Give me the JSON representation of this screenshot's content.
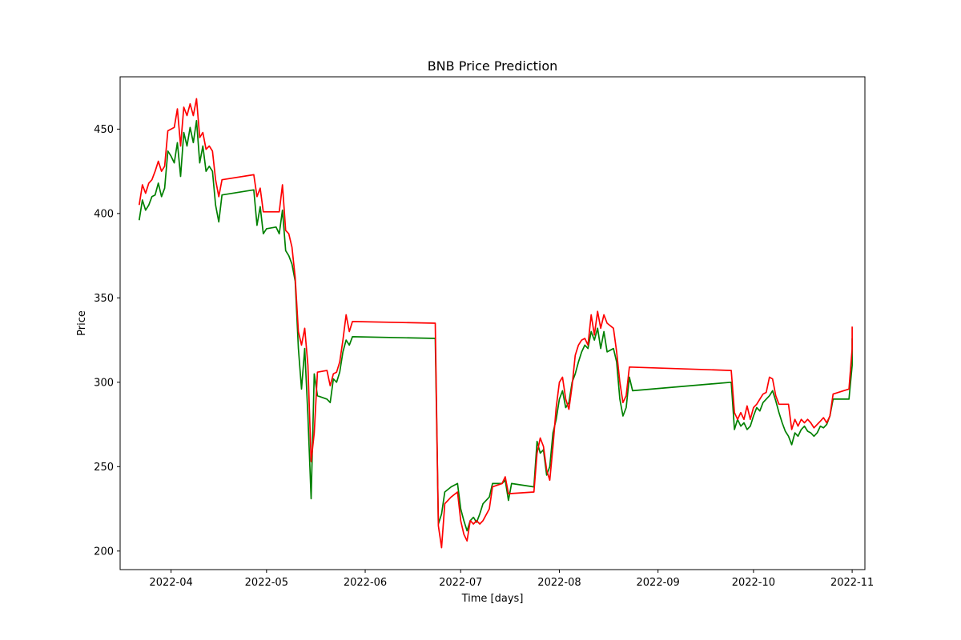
{
  "chart_data": {
    "type": "line",
    "title": "BNB Price Prediction",
    "xlabel": "Time [days]",
    "ylabel": "Price",
    "x_ticks": [
      "2022-04",
      "2022-05",
      "2022-06",
      "2022-07",
      "2022-08",
      "2022-09",
      "2022-10",
      "2022-11"
    ],
    "y_ticks": [
      200,
      250,
      300,
      350,
      400,
      450
    ],
    "xlim": [
      "2022-03-16",
      "2022-11-05"
    ],
    "ylim": [
      189,
      481
    ],
    "grid": false,
    "series": [
      {
        "color": "#008000",
        "points": [
          [
            "2022-03-22",
            396
          ],
          [
            "2022-03-23",
            408
          ],
          [
            "2022-03-24",
            402
          ],
          [
            "2022-03-25",
            405
          ],
          [
            "2022-03-26",
            410
          ],
          [
            "2022-03-27",
            411
          ],
          [
            "2022-03-28",
            418
          ],
          [
            "2022-03-29",
            410
          ],
          [
            "2022-03-30",
            415
          ],
          [
            "2022-03-31",
            437
          ],
          [
            "2022-04-01",
            434
          ],
          [
            "2022-04-02",
            430
          ],
          [
            "2022-04-03",
            442
          ],
          [
            "2022-04-04",
            422
          ],
          [
            "2022-04-05",
            448
          ],
          [
            "2022-04-06",
            440
          ],
          [
            "2022-04-07",
            451
          ],
          [
            "2022-04-08",
            442
          ],
          [
            "2022-04-09",
            455
          ],
          [
            "2022-04-10",
            430
          ],
          [
            "2022-04-11",
            440
          ],
          [
            "2022-04-12",
            425
          ],
          [
            "2022-04-13",
            428
          ],
          [
            "2022-04-14",
            425
          ],
          [
            "2022-04-15",
            405
          ],
          [
            "2022-04-16",
            395
          ],
          [
            "2022-04-17",
            411
          ],
          [
            "2022-04-27",
            414
          ],
          [
            "2022-04-28",
            393
          ],
          [
            "2022-04-29",
            404
          ],
          [
            "2022-04-30",
            388
          ],
          [
            "2022-05-01",
            391
          ],
          [
            "2022-05-04",
            392
          ],
          [
            "2022-05-05",
            388
          ],
          [
            "2022-05-06",
            402
          ],
          [
            "2022-05-07",
            378
          ],
          [
            "2022-05-08",
            375
          ],
          [
            "2022-05-09",
            370
          ],
          [
            "2022-05-10",
            360
          ],
          [
            "2022-05-11",
            320
          ],
          [
            "2022-05-12",
            296
          ],
          [
            "2022-05-13",
            320
          ],
          [
            "2022-05-14",
            280
          ],
          [
            "2022-05-15",
            231
          ],
          [
            "2022-05-16",
            305
          ],
          [
            "2022-05-17",
            292
          ],
          [
            "2022-05-20",
            290
          ],
          [
            "2022-05-21",
            288
          ],
          [
            "2022-05-22",
            302
          ],
          [
            "2022-05-23",
            300
          ],
          [
            "2022-05-24",
            306
          ],
          [
            "2022-05-25",
            318
          ],
          [
            "2022-05-26",
            325
          ],
          [
            "2022-05-27",
            322
          ],
          [
            "2022-05-28",
            327
          ],
          [
            "2022-06-23",
            326
          ],
          [
            "2022-06-24",
            216
          ],
          [
            "2022-06-25",
            222
          ],
          [
            "2022-06-26",
            235
          ],
          [
            "2022-06-28",
            238
          ],
          [
            "2022-06-30",
            240
          ],
          [
            "2022-07-01",
            225
          ],
          [
            "2022-07-02",
            218
          ],
          [
            "2022-07-03",
            212
          ],
          [
            "2022-07-04",
            218
          ],
          [
            "2022-07-05",
            220
          ],
          [
            "2022-07-06",
            217
          ],
          [
            "2022-07-07",
            222
          ],
          [
            "2022-07-08",
            228
          ],
          [
            "2022-07-10",
            232
          ],
          [
            "2022-07-11",
            240
          ],
          [
            "2022-07-14",
            240
          ],
          [
            "2022-07-15",
            242
          ],
          [
            "2022-07-16",
            230
          ],
          [
            "2022-07-17",
            240
          ],
          [
            "2022-07-24",
            238
          ],
          [
            "2022-07-25",
            265
          ],
          [
            "2022-07-26",
            258
          ],
          [
            "2022-07-27",
            260
          ],
          [
            "2022-07-28",
            245
          ],
          [
            "2022-07-29",
            250
          ],
          [
            "2022-07-30",
            270
          ],
          [
            "2022-07-31",
            278
          ],
          [
            "2022-08-01",
            290
          ],
          [
            "2022-08-02",
            295
          ],
          [
            "2022-08-03",
            285
          ],
          [
            "2022-08-04",
            288
          ],
          [
            "2022-08-05",
            300
          ],
          [
            "2022-08-06",
            305
          ],
          [
            "2022-08-07",
            312
          ],
          [
            "2022-08-08",
            318
          ],
          [
            "2022-08-09",
            322
          ],
          [
            "2022-08-10",
            320
          ],
          [
            "2022-08-11",
            330
          ],
          [
            "2022-08-12",
            325
          ],
          [
            "2022-08-13",
            332
          ],
          [
            "2022-08-14",
            320
          ],
          [
            "2022-08-15",
            330
          ],
          [
            "2022-08-16",
            318
          ],
          [
            "2022-08-18",
            320
          ],
          [
            "2022-08-19",
            312
          ],
          [
            "2022-08-20",
            290
          ],
          [
            "2022-08-21",
            280
          ],
          [
            "2022-08-22",
            285
          ],
          [
            "2022-08-23",
            303
          ],
          [
            "2022-08-24",
            295
          ],
          [
            "2022-09-24",
            300
          ],
          [
            "2022-09-25",
            272
          ],
          [
            "2022-09-26",
            278
          ],
          [
            "2022-09-27",
            274
          ],
          [
            "2022-09-28",
            276
          ],
          [
            "2022-09-29",
            272
          ],
          [
            "2022-09-30",
            274
          ],
          [
            "2022-10-01",
            280
          ],
          [
            "2022-10-02",
            285
          ],
          [
            "2022-10-03",
            283
          ],
          [
            "2022-10-04",
            288
          ],
          [
            "2022-10-05",
            290
          ],
          [
            "2022-10-06",
            292
          ],
          [
            "2022-10-07",
            295
          ],
          [
            "2022-10-08",
            289
          ],
          [
            "2022-10-09",
            282
          ],
          [
            "2022-10-10",
            276
          ],
          [
            "2022-10-11",
            271
          ],
          [
            "2022-10-12",
            268
          ],
          [
            "2022-10-13",
            263
          ],
          [
            "2022-10-14",
            270
          ],
          [
            "2022-10-15",
            268
          ],
          [
            "2022-10-16",
            272
          ],
          [
            "2022-10-17",
            274
          ],
          [
            "2022-10-18",
            271
          ],
          [
            "2022-10-19",
            270
          ],
          [
            "2022-10-20",
            268
          ],
          [
            "2022-10-21",
            270
          ],
          [
            "2022-10-22",
            274
          ],
          [
            "2022-10-23",
            273
          ],
          [
            "2022-10-24",
            275
          ],
          [
            "2022-10-25",
            280
          ],
          [
            "2022-10-26",
            290
          ],
          [
            "2022-10-31",
            290
          ],
          [
            "2022-11-01",
            310
          ],
          [
            "2022-11-01",
            326
          ]
        ]
      },
      {
        "color": "#ff0000",
        "points": [
          [
            "2022-03-22",
            405
          ],
          [
            "2022-03-23",
            417
          ],
          [
            "2022-03-24",
            412
          ],
          [
            "2022-03-25",
            418
          ],
          [
            "2022-03-26",
            420
          ],
          [
            "2022-03-27",
            425
          ],
          [
            "2022-03-28",
            431
          ],
          [
            "2022-03-29",
            425
          ],
          [
            "2022-03-30",
            428
          ],
          [
            "2022-03-31",
            449
          ],
          [
            "2022-04-01",
            450
          ],
          [
            "2022-04-02",
            451
          ],
          [
            "2022-04-03",
            462
          ],
          [
            "2022-04-04",
            440
          ],
          [
            "2022-04-05",
            463
          ],
          [
            "2022-04-06",
            458
          ],
          [
            "2022-04-07",
            465
          ],
          [
            "2022-04-08",
            458
          ],
          [
            "2022-04-09",
            468
          ],
          [
            "2022-04-10",
            445
          ],
          [
            "2022-04-11",
            448
          ],
          [
            "2022-04-12",
            438
          ],
          [
            "2022-04-13",
            440
          ],
          [
            "2022-04-14",
            437
          ],
          [
            "2022-04-15",
            420
          ],
          [
            "2022-04-16",
            410
          ],
          [
            "2022-04-17",
            420
          ],
          [
            "2022-04-27",
            423
          ],
          [
            "2022-04-28",
            410
          ],
          [
            "2022-04-29",
            415
          ],
          [
            "2022-04-30",
            401
          ],
          [
            "2022-05-05",
            401
          ],
          [
            "2022-05-06",
            417
          ],
          [
            "2022-05-07",
            390
          ],
          [
            "2022-05-08",
            388
          ],
          [
            "2022-05-09",
            380
          ],
          [
            "2022-05-10",
            362
          ],
          [
            "2022-05-11",
            330
          ],
          [
            "2022-05-12",
            322
          ],
          [
            "2022-05-13",
            332
          ],
          [
            "2022-05-14",
            310
          ],
          [
            "2022-05-15",
            253
          ],
          [
            "2022-05-16",
            270
          ],
          [
            "2022-05-17",
            306
          ],
          [
            "2022-05-20",
            307
          ],
          [
            "2022-05-21",
            298
          ],
          [
            "2022-05-22",
            305
          ],
          [
            "2022-05-23",
            306
          ],
          [
            "2022-05-24",
            312
          ],
          [
            "2022-05-25",
            325
          ],
          [
            "2022-05-26",
            340
          ],
          [
            "2022-05-27",
            330
          ],
          [
            "2022-05-28",
            336
          ],
          [
            "2022-06-23",
            335
          ],
          [
            "2022-06-24",
            215
          ],
          [
            "2022-06-25",
            202
          ],
          [
            "2022-06-26",
            228
          ],
          [
            "2022-06-28",
            232
          ],
          [
            "2022-06-30",
            235
          ],
          [
            "2022-07-01",
            218
          ],
          [
            "2022-07-02",
            210
          ],
          [
            "2022-07-03",
            206
          ],
          [
            "2022-07-04",
            218
          ],
          [
            "2022-07-05",
            216
          ],
          [
            "2022-07-06",
            218
          ],
          [
            "2022-07-07",
            216
          ],
          [
            "2022-07-08",
            218
          ],
          [
            "2022-07-10",
            225
          ],
          [
            "2022-07-11",
            238
          ],
          [
            "2022-07-14",
            240
          ],
          [
            "2022-07-15",
            244
          ],
          [
            "2022-07-16",
            234
          ],
          [
            "2022-07-24",
            235
          ],
          [
            "2022-07-25",
            258
          ],
          [
            "2022-07-26",
            267
          ],
          [
            "2022-07-27",
            262
          ],
          [
            "2022-07-28",
            248
          ],
          [
            "2022-07-29",
            242
          ],
          [
            "2022-07-30",
            262
          ],
          [
            "2022-07-31",
            285
          ],
          [
            "2022-08-01",
            300
          ],
          [
            "2022-08-02",
            303
          ],
          [
            "2022-08-03",
            290
          ],
          [
            "2022-08-04",
            284
          ],
          [
            "2022-08-05",
            298
          ],
          [
            "2022-08-06",
            316
          ],
          [
            "2022-08-07",
            322
          ],
          [
            "2022-08-08",
            325
          ],
          [
            "2022-08-09",
            326
          ],
          [
            "2022-08-10",
            322
          ],
          [
            "2022-08-11",
            340
          ],
          [
            "2022-08-12",
            328
          ],
          [
            "2022-08-13",
            342
          ],
          [
            "2022-08-14",
            332
          ],
          [
            "2022-08-15",
            340
          ],
          [
            "2022-08-16",
            335
          ],
          [
            "2022-08-18",
            332
          ],
          [
            "2022-08-19",
            318
          ],
          [
            "2022-08-20",
            300
          ],
          [
            "2022-08-21",
            288
          ],
          [
            "2022-08-22",
            292
          ],
          [
            "2022-08-23",
            309
          ],
          [
            "2022-09-24",
            307
          ],
          [
            "2022-09-25",
            282
          ],
          [
            "2022-09-26",
            278
          ],
          [
            "2022-09-27",
            282
          ],
          [
            "2022-09-28",
            278
          ],
          [
            "2022-09-29",
            286
          ],
          [
            "2022-09-30",
            278
          ],
          [
            "2022-10-01",
            285
          ],
          [
            "2022-10-02",
            287
          ],
          [
            "2022-10-03",
            290
          ],
          [
            "2022-10-04",
            293
          ],
          [
            "2022-10-05",
            294
          ],
          [
            "2022-10-06",
            303
          ],
          [
            "2022-10-07",
            302
          ],
          [
            "2022-10-08",
            292
          ],
          [
            "2022-10-09",
            287
          ],
          [
            "2022-10-12",
            287
          ],
          [
            "2022-10-13",
            272
          ],
          [
            "2022-10-14",
            278
          ],
          [
            "2022-10-15",
            274
          ],
          [
            "2022-10-16",
            278
          ],
          [
            "2022-10-17",
            276
          ],
          [
            "2022-10-18",
            278
          ],
          [
            "2022-10-19",
            276
          ],
          [
            "2022-10-20",
            273
          ],
          [
            "2022-10-21",
            275
          ],
          [
            "2022-10-22",
            277
          ],
          [
            "2022-10-23",
            279
          ],
          [
            "2022-10-24",
            276
          ],
          [
            "2022-10-25",
            280
          ],
          [
            "2022-10-26",
            293
          ],
          [
            "2022-10-31",
            296
          ],
          [
            "2022-11-01",
            320
          ],
          [
            "2022-11-01",
            333
          ]
        ]
      }
    ]
  }
}
